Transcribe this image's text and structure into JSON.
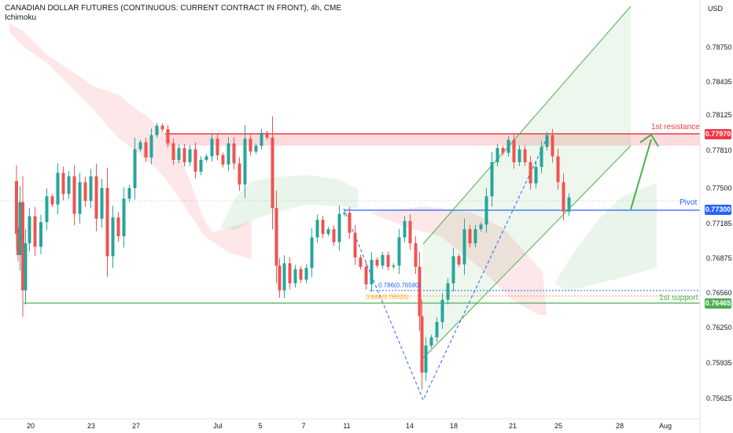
{
  "header": {
    "title": "CANADIAN DOLLAR FUTURES (CONTINUOUS: CURRENT CONTRACT IN FRONT), 4h, CME",
    "indicator": "Ichimoku"
  },
  "axis": {
    "currency": "USD"
  },
  "levels": {
    "resistance": {
      "label": "1st resistance",
      "value": "0.77970",
      "color": "#f23645"
    },
    "pivot": {
      "label": "Pivot",
      "value": "0.77300",
      "color": "#2962ff"
    },
    "support": {
      "label": "1st support",
      "value": "0.76465",
      "color": "#4caf50"
    }
  },
  "fib": {
    "f786": "0.786(0.76580)",
    "f886": "0.886(0.76520)"
  },
  "chart_data": {
    "type": "candlestick",
    "title": "CANADIAN DOLLAR FUTURES (CONTINUOUS: CURRENT CONTRACT IN FRONT), 4h, CME",
    "y_tick_labels": [
      "0.78750",
      "0.78435",
      "0.78125",
      "0.77810",
      "0.77500",
      "0.77185",
      "0.76875",
      "0.76560",
      "0.76250",
      "0.75935",
      "0.75625"
    ],
    "x_tick_labels": [
      "20",
      "23",
      "27",
      "Jul",
      "5",
      "7",
      "11",
      "14",
      "18",
      "21",
      "25",
      "28",
      "Aug"
    ],
    "ylim": [
      0.7552,
      0.7907
    ],
    "horizontal_levels": [
      {
        "name": "1st resistance",
        "value": 0.7797
      },
      {
        "name": "Pivot",
        "value": 0.773
      },
      {
        "name": "1st support",
        "value": 0.76465
      },
      {
        "name": "0.786",
        "value": 0.7658
      },
      {
        "name": "0.886",
        "value": 0.7652
      }
    ],
    "price_path": [
      [
        20,
        0.7753
      ],
      [
        22,
        0.7708
      ],
      [
        24,
        0.769
      ],
      [
        27,
        0.7735
      ],
      [
        31,
        0.766
      ],
      [
        34,
        0.77
      ],
      [
        41,
        0.7723
      ],
      [
        48,
        0.7697
      ],
      [
        56,
        0.7718
      ],
      [
        63,
        0.774
      ],
      [
        70,
        0.7733
      ],
      [
        77,
        0.776
      ],
      [
        84,
        0.7742
      ],
      [
        91,
        0.7757
      ],
      [
        98,
        0.7725
      ],
      [
        105,
        0.7752
      ],
      [
        112,
        0.7736
      ],
      [
        119,
        0.7757
      ],
      [
        126,
        0.7721
      ],
      [
        133,
        0.7747
      ],
      [
        140,
        0.7689
      ],
      [
        147,
        0.7722
      ],
      [
        154,
        0.7706
      ],
      [
        161,
        0.7738
      ],
      [
        168,
        0.7747
      ],
      [
        175,
        0.778
      ],
      [
        182,
        0.7786
      ],
      [
        189,
        0.7773
      ],
      [
        196,
        0.7792
      ],
      [
        203,
        0.78
      ],
      [
        210,
        0.7797
      ],
      [
        217,
        0.7785
      ],
      [
        224,
        0.7771
      ],
      [
        231,
        0.7781
      ],
      [
        238,
        0.7769
      ],
      [
        245,
        0.778
      ],
      [
        252,
        0.7761
      ],
      [
        259,
        0.7771
      ],
      [
        266,
        0.7774
      ],
      [
        273,
        0.7789
      ],
      [
        280,
        0.7775
      ],
      [
        287,
        0.7767
      ],
      [
        294,
        0.7785
      ],
      [
        301,
        0.7768
      ],
      [
        308,
        0.775
      ],
      [
        315,
        0.7789
      ],
      [
        322,
        0.7778
      ],
      [
        329,
        0.7783
      ],
      [
        336,
        0.7794
      ],
      [
        343,
        0.779
      ],
      [
        350,
        0.773
      ],
      [
        353,
        0.7681
      ],
      [
        358,
        0.766
      ],
      [
        365,
        0.7683
      ],
      [
        372,
        0.7666
      ],
      [
        379,
        0.7678
      ],
      [
        386,
        0.7669
      ],
      [
        393,
        0.7679
      ],
      [
        400,
        0.7705
      ],
      [
        407,
        0.772
      ],
      [
        414,
        0.7708
      ],
      [
        421,
        0.7712
      ],
      [
        428,
        0.7701
      ],
      [
        435,
        0.7725
      ],
      [
        441,
        0.7726
      ],
      [
        448,
        0.7709
      ],
      [
        455,
        0.7688
      ],
      [
        462,
        0.768
      ],
      [
        469,
        0.7665
      ],
      [
        476,
        0.7686
      ],
      [
        483,
        0.7681
      ],
      [
        490,
        0.769
      ],
      [
        497,
        0.768
      ],
      [
        504,
        0.7681
      ],
      [
        511,
        0.7705
      ],
      [
        518,
        0.7719
      ],
      [
        525,
        0.77
      ],
      [
        532,
        0.768
      ],
      [
        535,
        0.7638
      ],
      [
        538,
        0.759
      ],
      [
        545,
        0.7613
      ],
      [
        552,
        0.762
      ],
      [
        559,
        0.7633
      ],
      [
        566,
        0.7652
      ],
      [
        573,
        0.7666
      ],
      [
        580,
        0.7689
      ],
      [
        587,
        0.7682
      ],
      [
        594,
        0.7712
      ],
      [
        601,
        0.77
      ],
      [
        608,
        0.7712
      ],
      [
        615,
        0.7716
      ],
      [
        622,
        0.774
      ],
      [
        629,
        0.7769
      ],
      [
        636,
        0.7781
      ],
      [
        643,
        0.7777
      ],
      [
        650,
        0.7788
      ],
      [
        657,
        0.7769
      ],
      [
        664,
        0.778
      ],
      [
        671,
        0.7769
      ],
      [
        678,
        0.7751
      ],
      [
        685,
        0.7765
      ],
      [
        692,
        0.7782
      ],
      [
        699,
        0.7792
      ],
      [
        706,
        0.7774
      ],
      [
        713,
        0.7752
      ],
      [
        720,
        0.7727
      ],
      [
        727,
        0.7739
      ]
    ]
  }
}
